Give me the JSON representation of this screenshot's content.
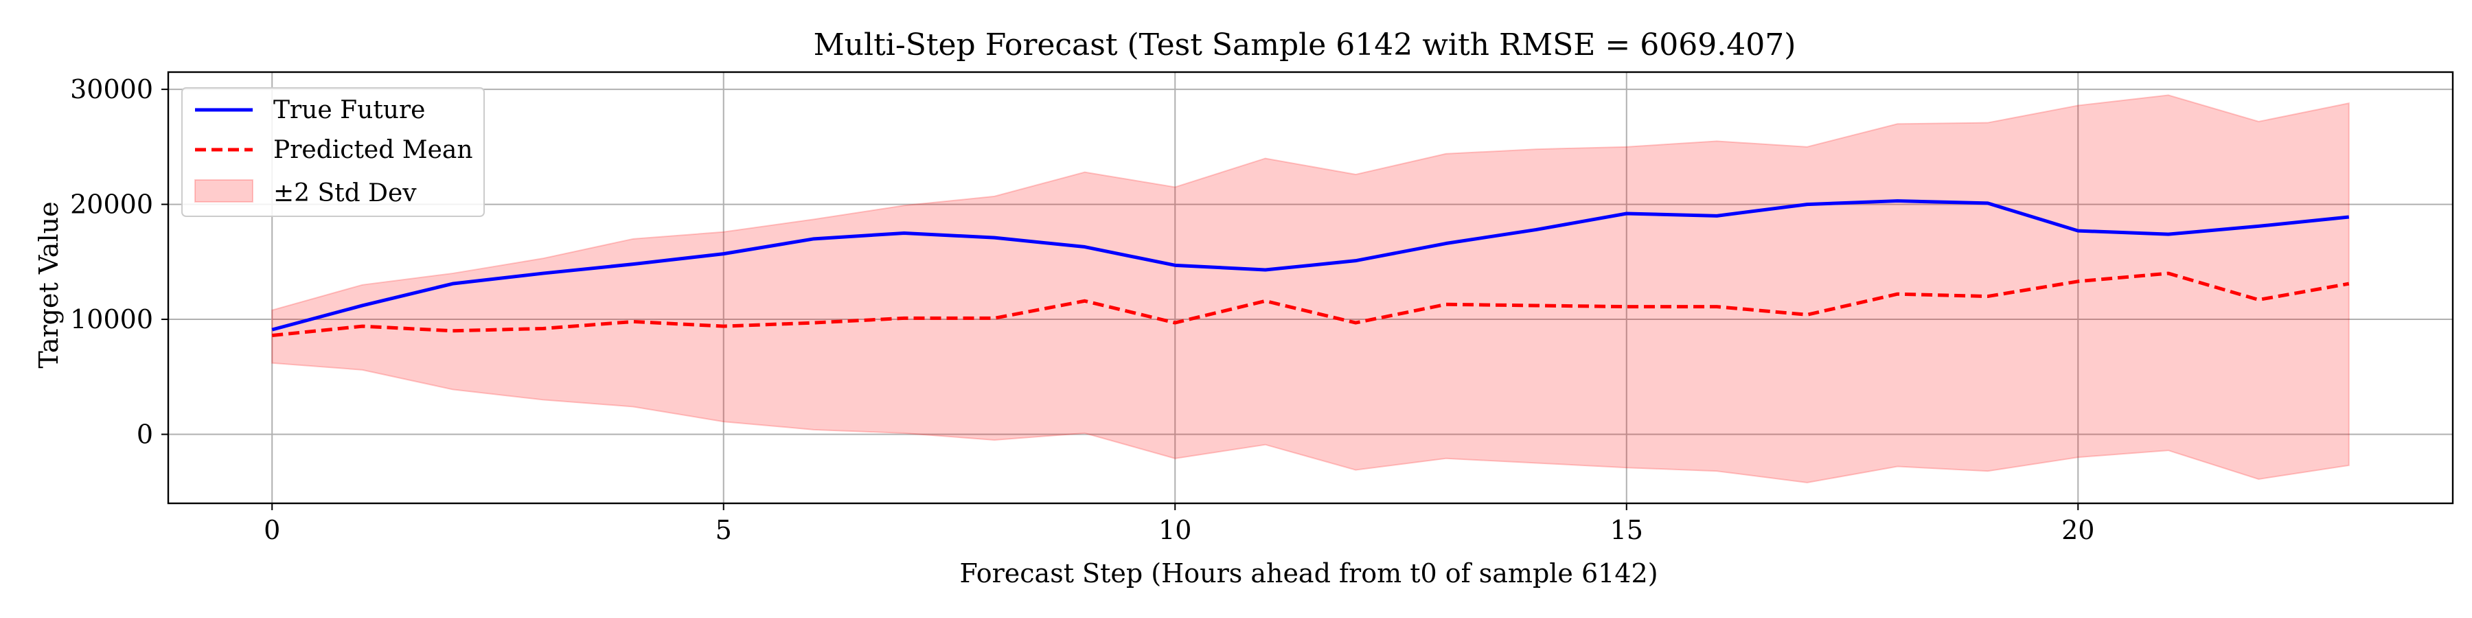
{
  "chart_data": {
    "type": "line",
    "title": "Multi-Step Forecast (Test Sample 6142 with RMSE = 6069.407)",
    "xlabel": "Forecast Step (Hours ahead from t0 of sample 6142)",
    "ylabel": "Target Value",
    "xlim": [
      -1.15,
      24.15
    ],
    "ylim": [
      -6000,
      31500
    ],
    "xticks": [
      0,
      5,
      10,
      15,
      20
    ],
    "yticks": [
      0,
      10000,
      20000,
      30000
    ],
    "grid": true,
    "legend_position": "top-left",
    "x": [
      0,
      1,
      2,
      3,
      4,
      5,
      6,
      7,
      8,
      9,
      10,
      11,
      12,
      13,
      14,
      15,
      16,
      17,
      18,
      19,
      20,
      21,
      22,
      23
    ],
    "series": [
      {
        "name": "True Future",
        "style": "solid",
        "color": "#0000ff",
        "values": [
          9100,
          11200,
          13100,
          14000,
          14800,
          15700,
          17000,
          17500,
          17100,
          16300,
          14700,
          14300,
          15100,
          16600,
          17800,
          19200,
          19000,
          20000,
          20300,
          20100,
          17700,
          17400,
          18100,
          18900
        ]
      },
      {
        "name": "Predicted Mean",
        "style": "dashed",
        "color": "#ff0000",
        "values": [
          8600,
          9400,
          9000,
          9200,
          9800,
          9400,
          9700,
          10100,
          10100,
          11600,
          9700,
          11600,
          9700,
          11300,
          11200,
          11100,
          11100,
          10400,
          12200,
          12000,
          13300,
          14000,
          11700,
          13100
        ]
      },
      {
        "name": "±2 Std Dev",
        "style": "band",
        "color": "#ff0000",
        "upper": [
          10800,
          13000,
          14000,
          15300,
          17000,
          17600,
          18700,
          19900,
          20700,
          22800,
          21500,
          24000,
          22600,
          24400,
          24800,
          25000,
          25500,
          25000,
          27000,
          27100,
          28600,
          29500,
          27200,
          28800
        ],
        "lower": [
          6200,
          5600,
          3900,
          3000,
          2400,
          1100,
          400,
          100,
          -500,
          100,
          -2100,
          -900,
          -3100,
          -2100,
          -2500,
          -2900,
          -3200,
          -4200,
          -2800,
          -3200,
          -2000,
          -1400,
          -3900,
          -2700
        ]
      }
    ]
  }
}
